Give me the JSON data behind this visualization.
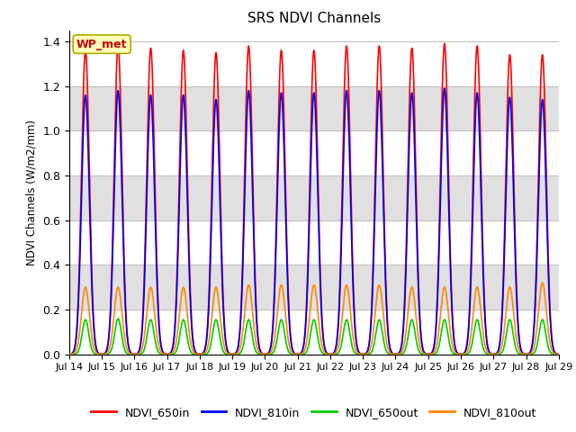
{
  "title": "SRS NDVI Channels",
  "ylabel": "NDVI Channels (W/m2/mm)",
  "annotation": "WP_met",
  "ylim": [
    0,
    1.45
  ],
  "yticks": [
    0.0,
    0.2,
    0.4,
    0.6,
    0.8,
    1.0,
    1.2,
    1.4
  ],
  "xtick_labels": [
    "Jul 14",
    "Jul 15",
    "Jul 16",
    "Jul 17",
    "Jul 18",
    "Jul 19",
    "Jul 20",
    "Jul 21",
    "Jul 22",
    "Jul 23",
    "Jul 24",
    "Jul 25",
    "Jul 26",
    "Jul 27",
    "Jul 28",
    "Jul 29"
  ],
  "colors": {
    "NDVI_650in": "#FF0000",
    "NDVI_810in": "#0000EE",
    "NDVI_650out": "#00CC00",
    "NDVI_810out": "#FF8800"
  },
  "peak_650in": [
    1.36,
    1.38,
    1.37,
    1.36,
    1.35,
    1.38,
    1.36,
    1.36,
    1.38,
    1.38,
    1.37,
    1.39,
    1.38,
    1.34,
    1.34
  ],
  "peak_810in": [
    1.16,
    1.18,
    1.16,
    1.16,
    1.14,
    1.18,
    1.17,
    1.17,
    1.18,
    1.18,
    1.17,
    1.19,
    1.17,
    1.15,
    1.14
  ],
  "peak_650out": [
    0.155,
    0.16,
    0.155,
    0.155,
    0.155,
    0.155,
    0.155,
    0.155,
    0.155,
    0.155,
    0.155,
    0.155,
    0.155,
    0.155,
    0.155
  ],
  "peak_810out": [
    0.3,
    0.3,
    0.3,
    0.3,
    0.3,
    0.31,
    0.31,
    0.31,
    0.31,
    0.31,
    0.3,
    0.3,
    0.3,
    0.3,
    0.32
  ],
  "background_color": "#ffffff",
  "band_color": "#e0e0e0",
  "n_days": 15,
  "sigma_in": 0.12,
  "sigma_out_650": 0.1,
  "sigma_out_810": 0.12
}
